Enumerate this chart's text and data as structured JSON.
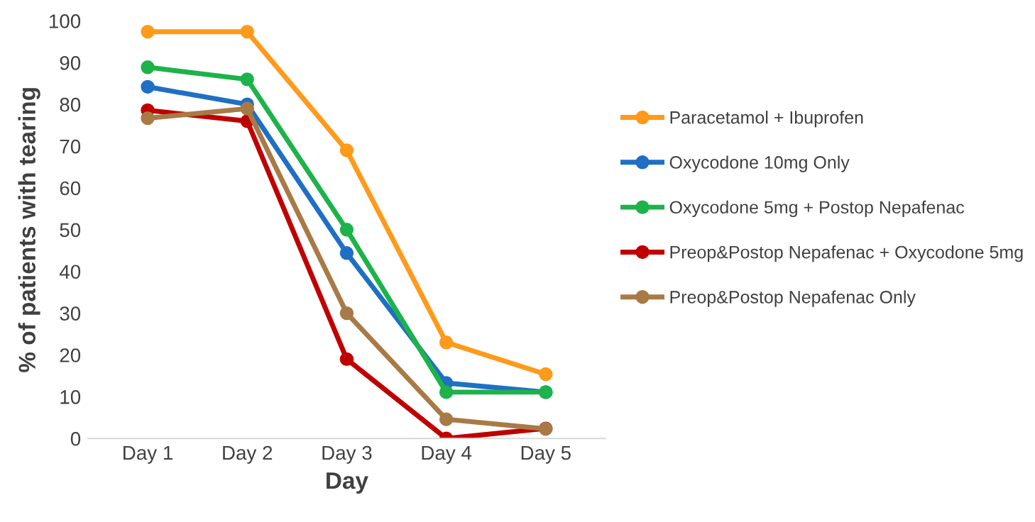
{
  "chart_data": {
    "type": "line",
    "xlabel": "Day",
    "ylabel": "% of patients with tearing",
    "categories": [
      "Day 1",
      "Day 2",
      "Day 3",
      "Day 4",
      "Day 5"
    ],
    "series": [
      {
        "name": "Paracetamol + Ibuprofen",
        "color": "#ff9a1a",
        "values": [
          97.4,
          97.4,
          69,
          23,
          15.4
        ]
      },
      {
        "name": "Oxycodone 10mg Only",
        "color": "#1f6fc5",
        "values": [
          84.2,
          80,
          44.4,
          13.3,
          11.1
        ]
      },
      {
        "name": "Oxycodone 5mg + Postop Nepafenac",
        "color": "#1db34a",
        "values": [
          88.9,
          86,
          50,
          11.1,
          11.1
        ]
      },
      {
        "name": "Preop&Postop Nepafenac + Oxycodone 5mg",
        "color": "#c00000",
        "values": [
          78.6,
          76,
          19,
          0,
          2.4
        ]
      },
      {
        "name": "Preop&Postop Nepafenac Only",
        "color": "#a87a45",
        "values": [
          76.7,
          79,
          30,
          4.6,
          2.3
        ]
      }
    ],
    "ylim": [
      0,
      100
    ],
    "yticks": [
      0,
      10,
      20,
      30,
      40,
      50,
      60,
      70,
      80,
      90,
      100
    ],
    "grid": false,
    "legend": "right",
    "marker": "circle",
    "line_style": "solid"
  }
}
